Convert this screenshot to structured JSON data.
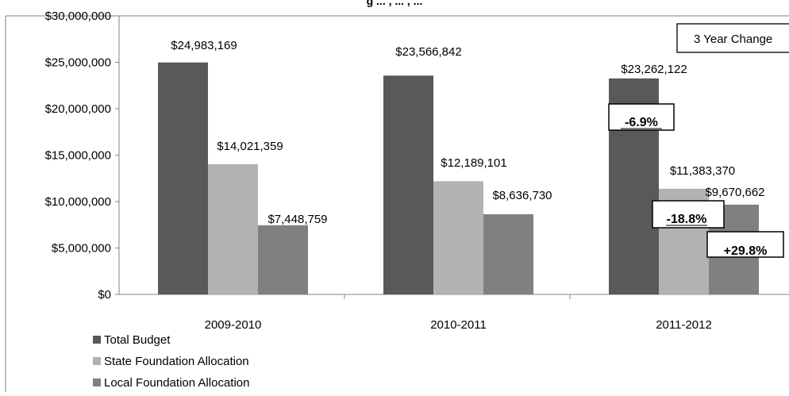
{
  "chart_data": {
    "type": "bar",
    "title_fragment": "g ... , ... , ...",
    "categories": [
      "2009-2010",
      "2010-2011",
      "2011-2012"
    ],
    "series": [
      {
        "name": "Total Budget",
        "values": [
          24983169,
          23566842,
          23262122
        ],
        "color": "#595959",
        "labels": [
          "$24,983,169",
          "$23,566,842",
          "$23,262,122"
        ]
      },
      {
        "name": "State Foundation Allocation",
        "values": [
          14021359,
          12189101,
          11383370
        ],
        "color": "#b2b2b2",
        "labels": [
          "$14,021,359",
          "$12,189,101",
          "$11,383,370"
        ]
      },
      {
        "name": "Local Foundation Allocation",
        "values": [
          7448759,
          8636730,
          9670662
        ],
        "color": "#808080",
        "labels": [
          "$7,448,759",
          "$8,636,730",
          "$9,670,662"
        ]
      }
    ],
    "ylim": [
      0,
      30000000
    ],
    "yticks": [
      0,
      5000000,
      10000000,
      15000000,
      20000000,
      25000000,
      30000000
    ],
    "ytick_labels": [
      "$0",
      "$5,000,000",
      "$10,000,000",
      "$15,000,000",
      "$20,000,000",
      "$25,000,000",
      "$30,000,000"
    ],
    "legend_position": "bottom-left",
    "annotations": {
      "box_title": "3 Year Change",
      "changes": [
        "-6.9%",
        "-18.8%",
        "+29.8%"
      ]
    }
  }
}
